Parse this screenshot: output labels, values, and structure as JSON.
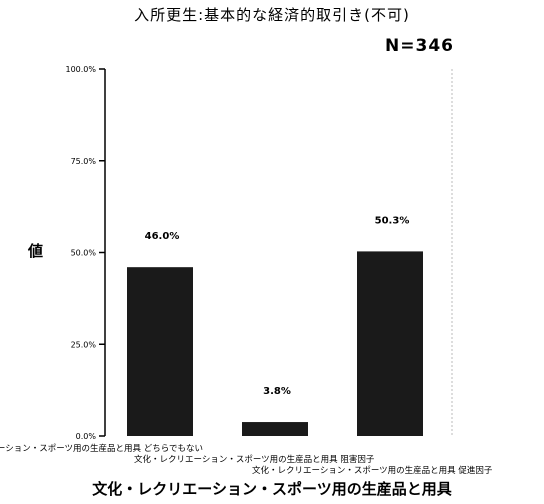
{
  "chart_data": {
    "type": "bar",
    "title": "入所更生:基本的な経済的取引き(不可)",
    "subtitle": "N=346",
    "ylabel": "値",
    "xlabel": "文化・レクリエーション・スポーツ用の生産品と用具",
    "categories": [
      "文化・レクリエーション・スポーツ用の生産品と用具 どちらでもない",
      "文化・レクリエーション・スポーツ用の生産品と用具 阻害因子",
      "文化・レクリエーション・スポーツ用の生産品と用具 促進因子"
    ],
    "values": [
      46.0,
      3.8,
      50.3
    ],
    "data_labels": [
      "46.0%",
      "3.8%",
      "50.3%"
    ],
    "ylim": [
      0,
      100
    ],
    "yticks": [
      0,
      25,
      50,
      75,
      100
    ],
    "ytick_labels": [
      "0.0%",
      "25.0%",
      "50.0%",
      "75.0%",
      "100.0%"
    ],
    "bar_color": "#1a1a1a",
    "grid": false,
    "legend": "none"
  }
}
